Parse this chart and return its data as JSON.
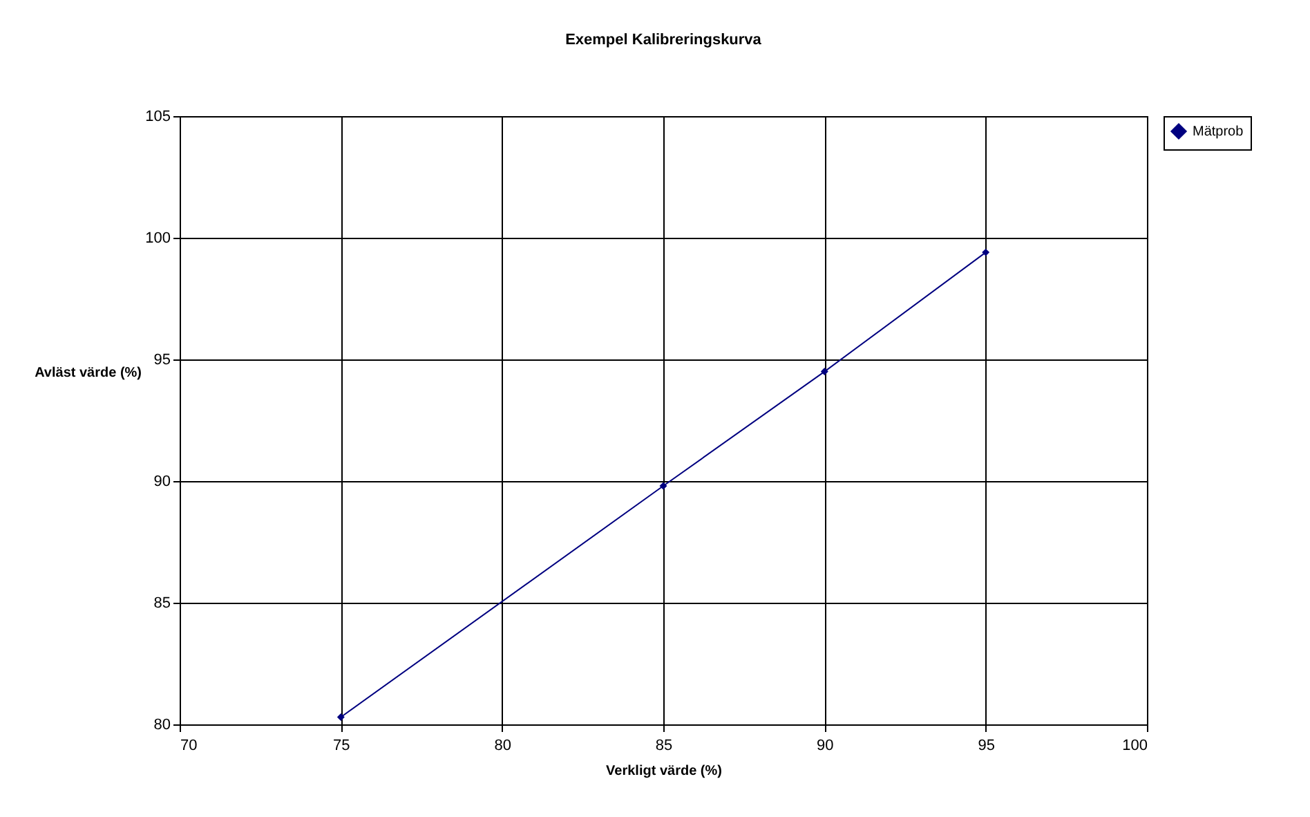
{
  "chart_data": {
    "type": "line",
    "title": "Exempel Kalibreringskurva",
    "xlabel": "Verkligt värde (%)",
    "ylabel": "Avläst värde (%)",
    "x": [
      75,
      85,
      90,
      95
    ],
    "series": [
      {
        "name": "Mätprob",
        "color": "#000080",
        "values": [
          80.3,
          89.8,
          94.5,
          99.4
        ]
      }
    ],
    "xlim": [
      70,
      100
    ],
    "xticks": [
      70,
      75,
      80,
      85,
      90,
      95,
      100
    ],
    "ylim": [
      80,
      105
    ],
    "yticks": [
      80,
      85,
      90,
      95,
      100,
      105
    ],
    "grid": true,
    "legend": "right",
    "marker": "diamond",
    "line_style": "solid"
  }
}
